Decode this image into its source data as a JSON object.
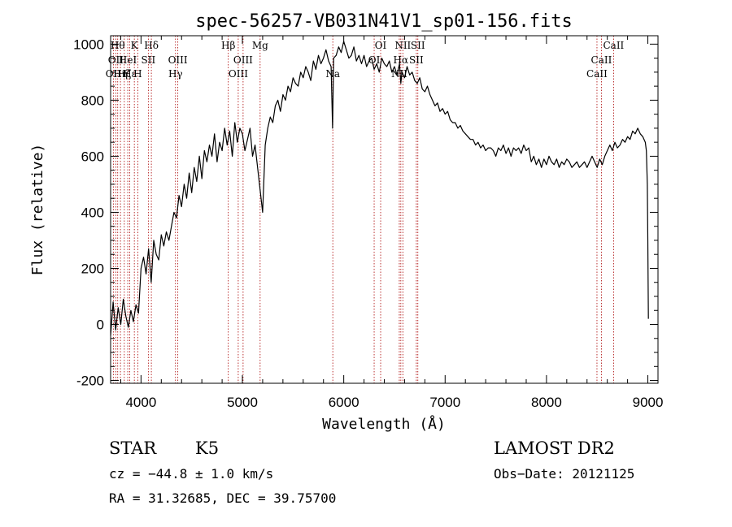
{
  "chart_data": {
    "type": "line",
    "title": "spec-56257-VB031N41V1_sp01-156.fits",
    "xlabel": "Wavelength (Å)",
    "ylabel": "Flux (relative)",
    "xlim": [
      3700,
      9100
    ],
    "ylim": [
      -210,
      1030
    ],
    "xticks": [
      4000,
      5000,
      6000,
      7000,
      8000,
      9000
    ],
    "yticks": [
      -200,
      0,
      200,
      400,
      600,
      800,
      1000
    ],
    "series": [
      {
        "name": "flux",
        "color": "#000000",
        "x": [
          3700,
          3725,
          3750,
          3775,
          3800,
          3825,
          3850,
          3875,
          3900,
          3925,
          3950,
          3975,
          4000,
          4025,
          4050,
          4075,
          4100,
          4125,
          4150,
          4175,
          4200,
          4225,
          4250,
          4275,
          4300,
          4325,
          4350,
          4375,
          4400,
          4425,
          4450,
          4475,
          4500,
          4525,
          4550,
          4575,
          4600,
          4625,
          4650,
          4675,
          4700,
          4725,
          4750,
          4775,
          4800,
          4825,
          4850,
          4875,
          4900,
          4925,
          4950,
          4975,
          5000,
          5025,
          5050,
          5075,
          5100,
          5125,
          5150,
          5175,
          5200,
          5225,
          5250,
          5275,
          5300,
          5325,
          5350,
          5375,
          5400,
          5425,
          5450,
          5475,
          5500,
          5525,
          5550,
          5575,
          5600,
          5625,
          5650,
          5675,
          5700,
          5725,
          5750,
          5775,
          5800,
          5825,
          5850,
          5875,
          5890,
          5900,
          5925,
          5950,
          5975,
          6000,
          6025,
          6050,
          6075,
          6100,
          6125,
          6150,
          6175,
          6200,
          6225,
          6250,
          6275,
          6300,
          6325,
          6350,
          6375,
          6400,
          6425,
          6450,
          6475,
          6500,
          6525,
          6550,
          6563,
          6575,
          6600,
          6625,
          6650,
          6675,
          6700,
          6725,
          6750,
          6775,
          6800,
          6825,
          6850,
          6875,
          6900,
          6925,
          6950,
          6975,
          7000,
          7025,
          7050,
          7075,
          7100,
          7125,
          7150,
          7175,
          7200,
          7225,
          7250,
          7275,
          7300,
          7325,
          7350,
          7375,
          7400,
          7425,
          7450,
          7475,
          7500,
          7525,
          7550,
          7575,
          7600,
          7625,
          7650,
          7675,
          7700,
          7725,
          7750,
          7775,
          7800,
          7825,
          7850,
          7875,
          7900,
          7925,
          7950,
          7975,
          8000,
          8025,
          8050,
          8075,
          8100,
          8125,
          8150,
          8175,
          8200,
          8225,
          8250,
          8275,
          8300,
          8325,
          8350,
          8375,
          8400,
          8425,
          8450,
          8475,
          8500,
          8525,
          8550,
          8575,
          8600,
          8625,
          8650,
          8675,
          8700,
          8725,
          8750,
          8775,
          8800,
          8825,
          8850,
          8875,
          8900,
          8925,
          8950,
          8975,
          8985,
          8995,
          9000,
          9005
        ],
        "y": [
          -40,
          80,
          -20,
          60,
          0,
          90,
          30,
          -10,
          50,
          10,
          70,
          40,
          200,
          240,
          180,
          270,
          150,
          300,
          250,
          230,
          320,
          280,
          330,
          300,
          350,
          400,
          380,
          460,
          420,
          500,
          450,
          540,
          470,
          560,
          510,
          600,
          520,
          620,
          580,
          640,
          600,
          680,
          580,
          650,
          620,
          700,
          640,
          690,
          600,
          720,
          650,
          700,
          680,
          620,
          660,
          700,
          600,
          640,
          560,
          480,
          400,
          640,
          700,
          740,
          720,
          780,
          800,
          760,
          820,
          800,
          850,
          830,
          880,
          860,
          850,
          900,
          880,
          920,
          900,
          870,
          940,
          910,
          960,
          930,
          950,
          980,
          940,
          920,
          700,
          950,
          960,
          990,
          970,
          1010,
          980,
          950,
          960,
          990,
          940,
          960,
          930,
          960,
          920,
          940,
          950,
          910,
          930,
          900,
          950,
          930,
          920,
          940,
          900,
          920,
          890,
          930,
          860,
          900,
          880,
          920,
          890,
          900,
          870,
          860,
          880,
          840,
          830,
          850,
          820,
          800,
          780,
          790,
          760,
          770,
          750,
          760,
          730,
          720,
          720,
          700,
          710,
          690,
          680,
          670,
          660,
          660,
          640,
          650,
          630,
          640,
          620,
          630,
          630,
          620,
          600,
          630,
          620,
          640,
          610,
          630,
          600,
          630,
          620,
          630,
          610,
          640,
          620,
          630,
          580,
          600,
          570,
          590,
          560,
          590,
          570,
          600,
          580,
          570,
          590,
          560,
          580,
          570,
          590,
          580,
          560,
          570,
          580,
          560,
          570,
          580,
          560,
          580,
          600,
          580,
          560,
          590,
          570,
          600,
          620,
          640,
          620,
          650,
          630,
          640,
          660,
          650,
          670,
          660,
          690,
          680,
          700,
          680,
          670,
          650,
          620,
          500,
          300,
          20
        ]
      }
    ],
    "line_markers": [
      {
        "wavelength": 3727,
        "label": "OII",
        "row": 2
      },
      {
        "wavelength": 3751,
        "label": "OII",
        "row": 1
      },
      {
        "wavelength": 3770,
        "label": "Hθ",
        "row": 0
      },
      {
        "wavelength": 3797,
        "label": "Hη",
        "row": 2
      },
      {
        "wavelength": 3835,
        "label": "Hζ",
        "row": 2
      },
      {
        "wavelength": 3869,
        "label": "HeI",
        "row": 1
      },
      {
        "wavelength": 3889,
        "label": "Hε",
        "row": 2
      },
      {
        "wavelength": 3934,
        "label": "K",
        "row": 0
      },
      {
        "wavelength": 3968,
        "label": "H",
        "row": 2
      },
      {
        "wavelength": 4072,
        "label": "SII",
        "row": 1
      },
      {
        "wavelength": 4102,
        "label": "Hδ",
        "row": 0
      },
      {
        "wavelength": 4340,
        "label": "Hγ",
        "row": 2
      },
      {
        "wavelength": 4363,
        "label": "OIII",
        "row": 1
      },
      {
        "wavelength": 4861,
        "label": "Hβ",
        "row": 0
      },
      {
        "wavelength": 4959,
        "label": "OIII",
        "row": 2
      },
      {
        "wavelength": 5007,
        "label": "OIII",
        "row": 1
      },
      {
        "wavelength": 5175,
        "label": "Mg",
        "row": 0
      },
      {
        "wavelength": 5892,
        "label": "Na",
        "row": 2
      },
      {
        "wavelength": 6300,
        "label": "OI",
        "row": 1
      },
      {
        "wavelength": 6364,
        "label": "OI",
        "row": 0
      },
      {
        "wavelength": 6548,
        "label": "NII",
        "row": 2
      },
      {
        "wavelength": 6563,
        "label": "Hα",
        "row": 1
      },
      {
        "wavelength": 6583,
        "label": "NII",
        "row": 0
      },
      {
        "wavelength": 6716,
        "label": "SII",
        "row": 1
      },
      {
        "wavelength": 6731,
        "label": "SII",
        "row": 0
      },
      {
        "wavelength": 8498,
        "label": "CaII",
        "row": 2
      },
      {
        "wavelength": 8542,
        "label": "CaII",
        "row": 1
      },
      {
        "wavelength": 8662,
        "label": "CaII",
        "row": 0
      }
    ],
    "marker_color": "#aa0000"
  },
  "info": {
    "class_label": "STAR",
    "subclass": "K5",
    "redshift": "cz = −44.8 ± 1.0 km/s",
    "coords": "RA =  31.32685, DEC =  39.75700",
    "survey": "LAMOST DR2",
    "obs_date": "Obs−Date: 20121125"
  }
}
